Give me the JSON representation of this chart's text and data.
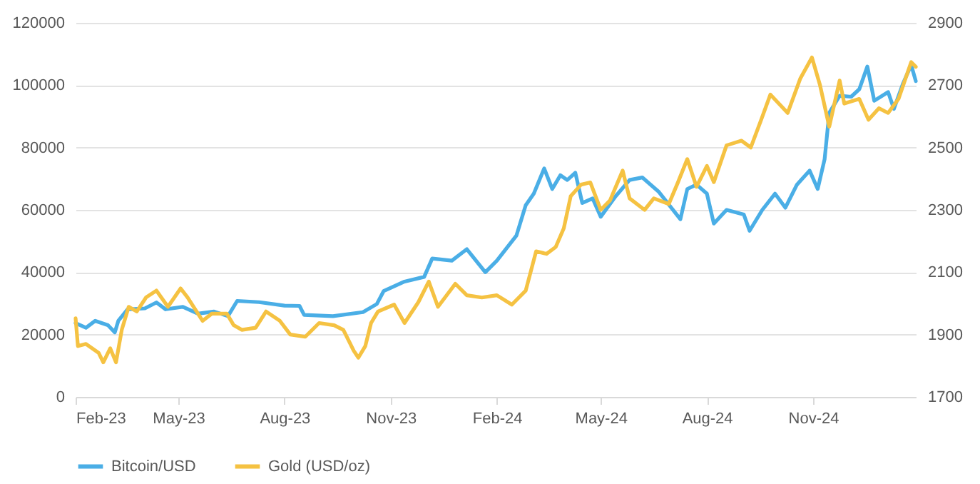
{
  "chart_data": {
    "type": "line",
    "legend": "bottom",
    "grid": "y",
    "xlim": [
      "2023-02-01",
      "2025-01-29"
    ],
    "xticks": [
      {
        "value": "2023-02-01",
        "label": "Feb-23"
      },
      {
        "value": "2023-05-01",
        "label": "May-23"
      },
      {
        "value": "2023-08-01",
        "label": "Aug-23"
      },
      {
        "value": "2023-11-01",
        "label": "Nov-23"
      },
      {
        "value": "2024-02-01",
        "label": "Feb-24"
      },
      {
        "value": "2024-05-01",
        "label": "May-24"
      },
      {
        "value": "2024-08-01",
        "label": "Aug-24"
      },
      {
        "value": "2024-11-01",
        "label": "Nov-24"
      }
    ],
    "ylim": [
      0,
      120000
    ],
    "yticks": [
      0,
      20000,
      40000,
      60000,
      80000,
      100000,
      120000
    ],
    "y2lim": [
      1700,
      2900
    ],
    "y2ticks": [
      1700,
      1900,
      2100,
      2300,
      2500,
      2700,
      2900
    ],
    "series": [
      {
        "name": "Bitcoin/USD",
        "color": "#4aaee6",
        "x": [
          "2023-02-01",
          "2023-02-10",
          "2023-02-18",
          "2023-03-01",
          "2023-03-07",
          "2023-03-10",
          "2023-03-18",
          "2023-04-02",
          "2023-04-12",
          "2023-04-20",
          "2023-05-05",
          "2023-05-18",
          "2023-06-01",
          "2023-06-13",
          "2023-06-21",
          "2023-07-10",
          "2023-08-01",
          "2023-08-14",
          "2023-08-18",
          "2023-09-12",
          "2023-10-08",
          "2023-10-20",
          "2023-10-26",
          "2023-11-13",
          "2023-11-30",
          "2023-12-07",
          "2023-12-24",
          "2024-01-06",
          "2024-01-22",
          "2024-02-01",
          "2024-02-18",
          "2024-02-26",
          "2024-03-04",
          "2024-03-13",
          "2024-03-20",
          "2024-03-27",
          "2024-04-02",
          "2024-04-09",
          "2024-04-15",
          "2024-04-24",
          "2024-05-01",
          "2024-05-14",
          "2024-05-26",
          "2024-06-06",
          "2024-06-20",
          "2024-07-09",
          "2024-07-15",
          "2024-07-23",
          "2024-08-01",
          "2024-08-07",
          "2024-08-18",
          "2024-09-02",
          "2024-09-07",
          "2024-09-18",
          "2024-09-29",
          "2024-10-08",
          "2024-10-18",
          "2024-10-29",
          "2024-11-05",
          "2024-11-11",
          "2024-11-15",
          "2024-11-24",
          "2024-12-04",
          "2024-12-11",
          "2024-12-18",
          "2024-12-24",
          "2025-01-05",
          "2025-01-10",
          "2025-01-18",
          "2025-01-25",
          "2025-01-29"
        ],
        "values": [
          23700,
          22200,
          24400,
          23000,
          20700,
          24400,
          28100,
          28400,
          30300,
          28100,
          28900,
          26700,
          27400,
          25900,
          30800,
          30400,
          29300,
          29200,
          26300,
          25900,
          27200,
          29800,
          34000,
          37000,
          38500,
          44400,
          43700,
          47400,
          40000,
          43700,
          51800,
          61500,
          65200,
          73300,
          66700,
          71100,
          69600,
          71900,
          62200,
          63700,
          57800,
          64400,
          69600,
          70400,
          65900,
          57000,
          66700,
          68100,
          65200,
          55600,
          60000,
          58500,
          53300,
          60000,
          65200,
          60700,
          68100,
          72600,
          66700,
          76300,
          91100,
          96600,
          96300,
          98700,
          106000,
          95000,
          97800,
          92400,
          100600,
          106500,
          101300
        ]
      },
      {
        "name": "Gold (USD/oz)",
        "color": "#f5c242",
        "axis": "y2",
        "x": [
          "2023-02-01",
          "2023-02-03",
          "2023-02-10",
          "2023-02-21",
          "2023-02-25",
          "2023-03-03",
          "2023-03-08",
          "2023-03-13",
          "2023-03-19",
          "2023-03-26",
          "2023-04-03",
          "2023-04-12",
          "2023-04-22",
          "2023-05-03",
          "2023-05-09",
          "2023-05-22",
          "2023-05-30",
          "2023-06-12",
          "2023-06-18",
          "2023-06-25",
          "2023-07-07",
          "2023-07-16",
          "2023-07-28",
          "2023-08-06",
          "2023-08-19",
          "2023-08-31",
          "2023-09-13",
          "2023-09-21",
          "2023-09-30",
          "2023-10-04",
          "2023-10-10",
          "2023-10-15",
          "2023-10-21",
          "2023-11-04",
          "2023-11-13",
          "2023-11-25",
          "2023-12-04",
          "2023-12-12",
          "2023-12-27",
          "2024-01-06",
          "2024-01-19",
          "2024-02-01",
          "2024-02-14",
          "2024-02-26",
          "2024-03-06",
          "2024-03-15",
          "2024-03-23",
          "2024-03-30",
          "2024-04-05",
          "2024-04-14",
          "2024-04-22",
          "2024-05-01",
          "2024-05-09",
          "2024-05-20",
          "2024-05-26",
          "2024-06-08",
          "2024-06-16",
          "2024-06-29",
          "2024-07-07",
          "2024-07-15",
          "2024-07-23",
          "2024-08-01",
          "2024-08-07",
          "2024-08-18",
          "2024-08-31",
          "2024-09-08",
          "2024-09-17",
          "2024-09-25",
          "2024-10-10",
          "2024-10-21",
          "2024-10-31",
          "2024-11-07",
          "2024-11-15",
          "2024-11-24",
          "2024-11-28",
          "2024-12-11",
          "2024-12-19",
          "2024-12-28",
          "2025-01-05",
          "2025-01-14",
          "2025-01-25",
          "2025-01-29"
        ],
        "values": [
          1952,
          1863,
          1870,
          1841,
          1811,
          1856,
          1811,
          1915,
          1989,
          1974,
          2019,
          2041,
          1989,
          2048,
          2019,
          1944,
          1967,
          1967,
          1930,
          1915,
          1922,
          1974,
          1944,
          1900,
          1893,
          1937,
          1930,
          1915,
          1848,
          1826,
          1863,
          1937,
          1974,
          1996,
          1937,
          2004,
          2070,
          1989,
          2063,
          2026,
          2019,
          2026,
          1996,
          2041,
          2167,
          2159,
          2181,
          2241,
          2344,
          2381,
          2388,
          2300,
          2330,
          2426,
          2337,
          2300,
          2337,
          2319,
          2389,
          2463,
          2374,
          2441,
          2389,
          2507,
          2522,
          2500,
          2589,
          2670,
          2611,
          2722,
          2789,
          2700,
          2567,
          2715,
          2641,
          2656,
          2589,
          2626,
          2611,
          2656,
          2774,
          2759
        ]
      }
    ]
  }
}
